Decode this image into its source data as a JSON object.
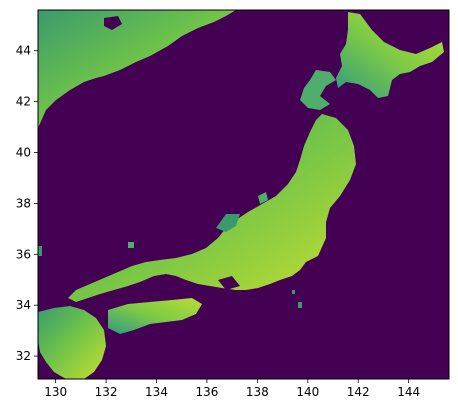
{
  "chart_data": {
    "type": "heatmap",
    "description_kind": "raster map of Japanese islands (elevation-style viridis colormap)",
    "colormap": "viridis",
    "background_color": "#440154",
    "land_colors": [
      "#2a9d8f",
      "#3b9b6b",
      "#5cbf4f",
      "#8fd14a",
      "#c7e22f",
      "#e8e419"
    ],
    "xlim": [
      129.3,
      145.6
    ],
    "ylim": [
      31.1,
      45.6
    ],
    "x_ticks": [
      "130",
      "132",
      "134",
      "136",
      "138",
      "140",
      "142",
      "144"
    ],
    "x_tick_values": [
      130,
      132,
      134,
      136,
      138,
      140,
      142,
      144
    ],
    "y_ticks": [
      "32",
      "34",
      "36",
      "38",
      "40",
      "42",
      "44"
    ],
    "y_tick_values": [
      32,
      34,
      36,
      38,
      40,
      42,
      44
    ],
    "title": "",
    "xlabel": "",
    "ylabel": "",
    "grid": false,
    "legend": false
  }
}
